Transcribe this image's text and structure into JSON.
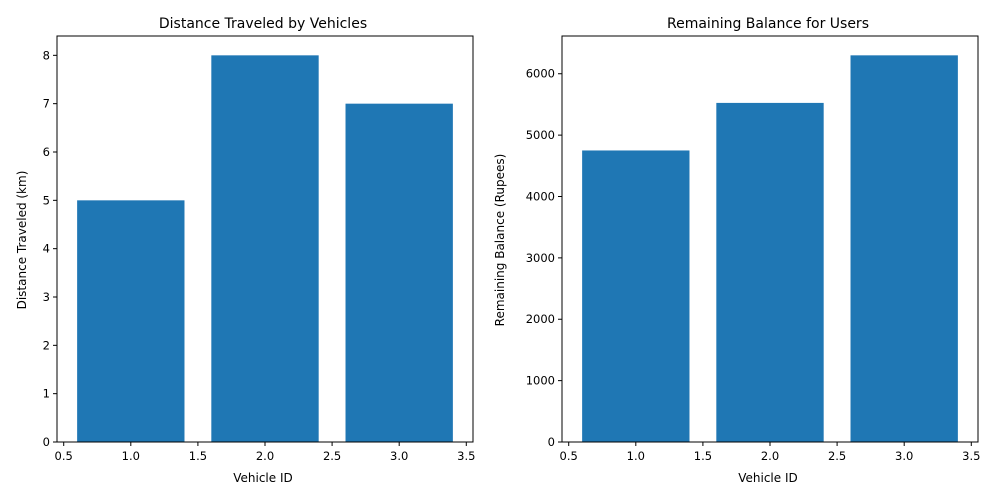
{
  "chart_data": [
    {
      "type": "bar",
      "title": "Distance Traveled by Vehicles",
      "xlabel": "Vehicle ID",
      "ylabel": "Distance Traveled (km)",
      "x": [
        1,
        2,
        3
      ],
      "values": [
        5,
        8,
        7
      ],
      "bar_width": 0.8,
      "xlim": [
        0.45,
        3.55
      ],
      "ylim": [
        0,
        8.4
      ],
      "xticks": [
        0.5,
        1.0,
        1.5,
        2.0,
        2.5,
        3.0,
        3.5
      ],
      "xtick_labels": [
        "0.5",
        "1.0",
        "1.5",
        "2.0",
        "2.5",
        "3.0",
        "3.5"
      ],
      "yticks": [
        0,
        1,
        2,
        3,
        4,
        5,
        6,
        7,
        8
      ],
      "ytick_labels": [
        "0",
        "1",
        "2",
        "3",
        "4",
        "5",
        "6",
        "7",
        "8"
      ],
      "bar_color": "#1f77b4",
      "grid": false
    },
    {
      "type": "bar",
      "title": "Remaining Balance for Users",
      "xlabel": "Vehicle ID",
      "ylabel": "Remaining Balance (Rupees)",
      "x": [
        1,
        2,
        3
      ],
      "values": [
        4750,
        5525,
        6300
      ],
      "bar_width": 0.8,
      "xlim": [
        0.45,
        3.55
      ],
      "ylim": [
        0,
        6615
      ],
      "xticks": [
        0.5,
        1.0,
        1.5,
        2.0,
        2.5,
        3.0,
        3.5
      ],
      "xtick_labels": [
        "0.5",
        "1.0",
        "1.5",
        "2.0",
        "2.5",
        "3.0",
        "3.5"
      ],
      "yticks": [
        0,
        1000,
        2000,
        3000,
        4000,
        5000,
        6000
      ],
      "ytick_labels": [
        "0",
        "1000",
        "2000",
        "3000",
        "4000",
        "5000",
        "6000"
      ],
      "bar_color": "#1f77b4",
      "grid": false
    }
  ]
}
